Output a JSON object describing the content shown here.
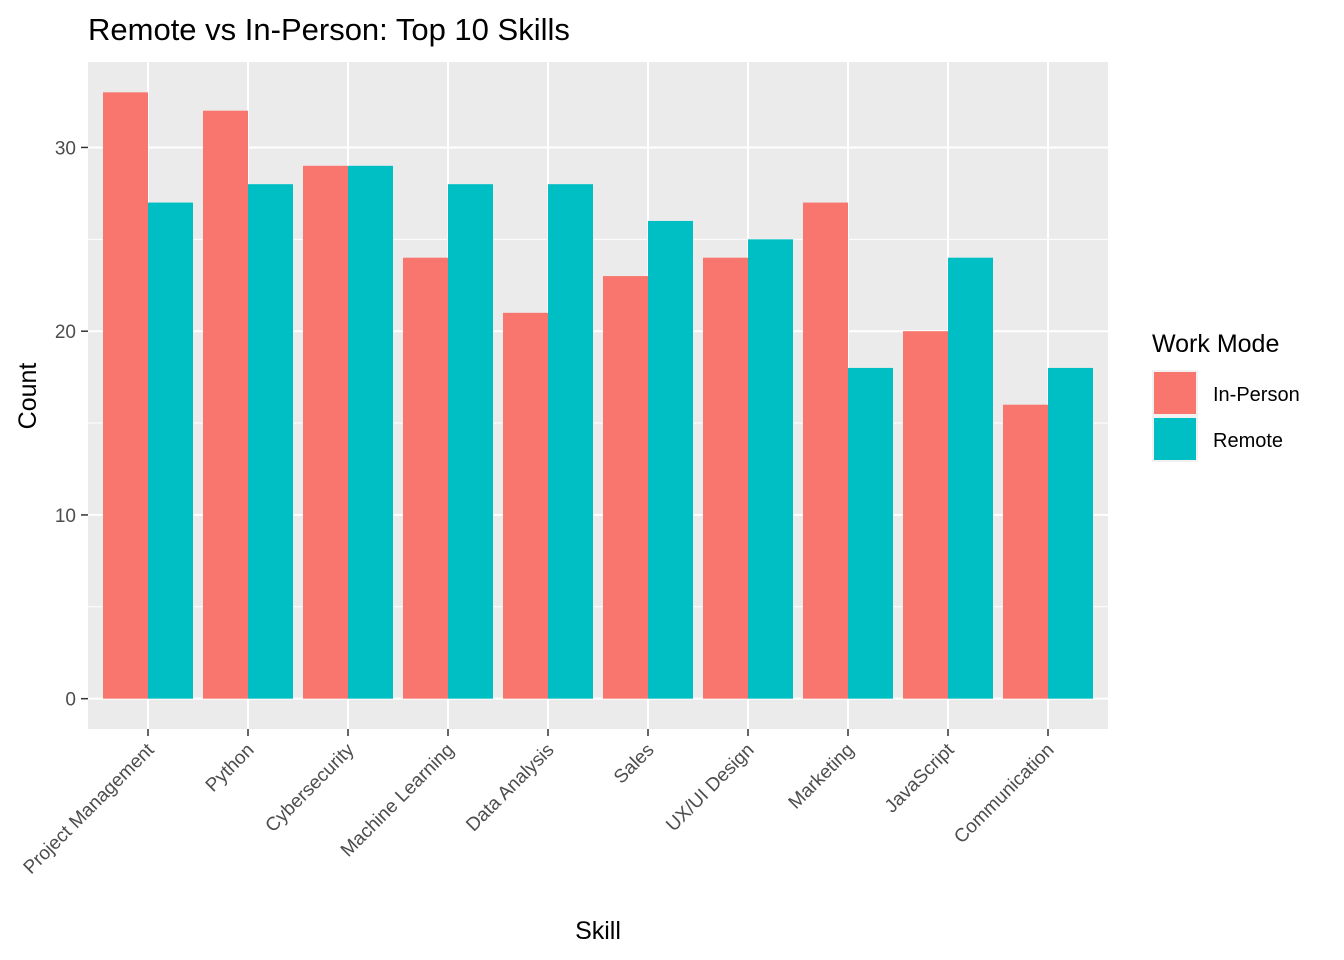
{
  "chart_data": {
    "type": "bar",
    "title": "Remote vs In-Person: Top 10 Skills",
    "xlabel": "Skill",
    "ylabel": "Count",
    "categories": [
      "Project Management",
      "Python",
      "Cybersecurity",
      "Machine Learning",
      "Data Analysis",
      "Sales",
      "UX/UI Design",
      "Marketing",
      "JavaScript",
      "Communication"
    ],
    "series": [
      {
        "name": "In-Person",
        "color": "#F8766D",
        "values": [
          33,
          32,
          29,
          24,
          21,
          23,
          24,
          27,
          20,
          16
        ]
      },
      {
        "name": "Remote",
        "color": "#00BFC4",
        "values": [
          27,
          28,
          29,
          28,
          28,
          26,
          25,
          18,
          24,
          18
        ]
      }
    ],
    "ylim": [
      -1.65,
      34.65
    ],
    "yticks": [
      0,
      10,
      20,
      30
    ],
    "grid": true,
    "legend": {
      "title": "Work Mode",
      "position": "right"
    }
  }
}
